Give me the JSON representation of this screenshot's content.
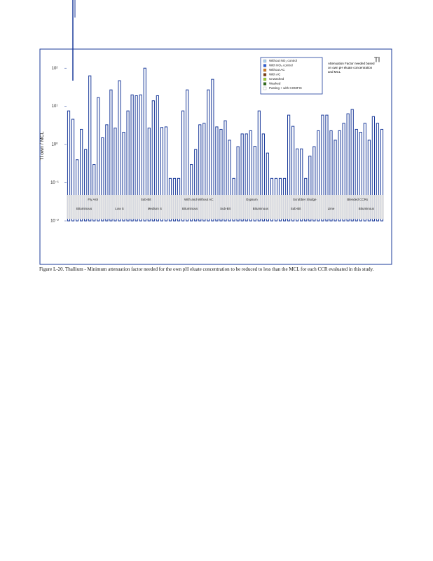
{
  "chart_data": {
    "type": "bar",
    "label": "Tl",
    "y_label": "Tl own / MCL",
    "log": true,
    "ylim": [
      0.01,
      316
    ],
    "yticks": [
      {
        "value": 100,
        "label": "10²"
      },
      {
        "value": 10,
        "label": "10¹"
      },
      {
        "value": 1,
        "label": "10⁰"
      },
      {
        "value": 0.1,
        "label": "10⁻¹"
      },
      {
        "value": 0.01,
        "label": "10⁻²"
      }
    ],
    "annotation": "Attenuation Factor needed based on own pH eluate concentration and MCL",
    "legend": [
      {
        "name": "Without NO₃ control",
        "color": "#a9d2f0"
      },
      {
        "name": "With NO₃ control",
        "color": "#2a5bd7"
      },
      {
        "name": "Without AC",
        "color": "#d27a1e"
      },
      {
        "name": "With AC",
        "color": "#7a3b10"
      },
      {
        "name": "Unwashed",
        "color": "#9acd32"
      },
      {
        "name": "Washed",
        "color": "#2e6b1a"
      },
      {
        "name": "Pasting + with COMFIC",
        "color": "#ffffff"
      }
    ],
    "groups_top": [
      "Fly Ash",
      "Sub-Bit",
      "With and Without AC",
      "Gypsum",
      "Scrubber Sludge",
      "Blended CCRs"
    ],
    "groups_bottom": [
      "Bituminous",
      "Low S",
      "Medium S",
      "Bituminous",
      "Sub-Bit",
      "Bituminous",
      "Sub-Bit",
      "Lime",
      "Bituminous"
    ],
    "series": [
      {
        "name": "Tl",
        "color": "#1a3a9a",
        "values": [
          7.6,
          4.6,
          0.4,
          2.5,
          0.74,
          63,
          0.3,
          17,
          1.5,
          3.3,
          27,
          2.7,
          47,
          2.1,
          7.6,
          20,
          19,
          20,
          100,
          2.7,
          14,
          19,
          2.8,
          2.9,
          0.13,
          0.13,
          0.13,
          7.6,
          27,
          0.3,
          0.74,
          3.3,
          3.6,
          27,
          51,
          2.9,
          2.5,
          4.2,
          1.3,
          0.13,
          0.88,
          1.9,
          1.9,
          2.3,
          0.9,
          7.6,
          1.9,
          0.6,
          0.13,
          0.13,
          0.13,
          0.13,
          5.9,
          3,
          0.77,
          0.77,
          0.13,
          0.5,
          0.88,
          2.3,
          5.9,
          5.9,
          2.3,
          1.3,
          2.3,
          3.6,
          6.4,
          8.3,
          2.5,
          2.1,
          3.6,
          1.3,
          5.4,
          3.6,
          2.5
        ]
      }
    ],
    "caption": "Figure L-20. Thallium - Minimum attenuation factor needed for the own pH eluate concentration to be reduced to less than the MCL for each CCR evaluated in this study."
  }
}
